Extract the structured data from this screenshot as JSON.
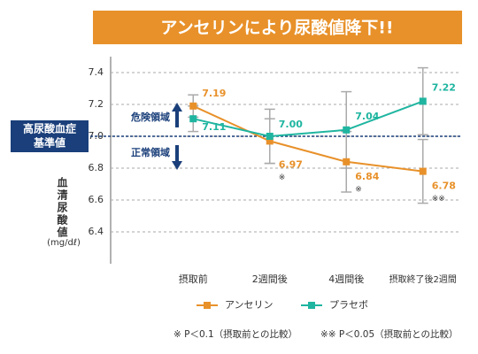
{
  "chart_data": {
    "type": "line",
    "title": "アンセリンにより尿酸値降下!!",
    "y_label": "血清尿酸値",
    "y_unit": "(mg/dℓ)",
    "categories": [
      "摂取前",
      "2週間後",
      "4週間後",
      "摂取終了後2週間"
    ],
    "series": [
      {
        "name": "アンセリン",
        "color": "#e8912a",
        "values": [
          7.19,
          6.97,
          6.84,
          6.78
        ],
        "value_labels": [
          "7.19",
          "6.97",
          "6.84",
          "6.78"
        ],
        "errors": [
          0.07,
          0.14,
          0.19,
          0.2
        ],
        "significance": [
          null,
          "※",
          "※",
          "※※"
        ]
      },
      {
        "name": "プラセボ",
        "color": "#1fb5a0",
        "values": [
          7.11,
          7.0,
          7.04,
          7.22
        ],
        "value_labels": [
          "7.11",
          "7.00",
          "7.04",
          "7.22"
        ],
        "errors": [
          0.08,
          0.17,
          0.24,
          0.21
        ]
      }
    ],
    "ylim": [
      6.2,
      7.5
    ],
    "yticks": [
      6.4,
      6.6,
      6.8,
      {
        "value": 7,
        "label": "7.0"
      },
      7.2,
      7.4
    ],
    "grid": true,
    "reference_line": {
      "value": 7,
      "label": [
        "高尿酸血症",
        "基準値"
      ],
      "color": "#1a3f7a"
    },
    "annotations": {
      "danger": "危険領域",
      "normal": "正常領域"
    },
    "footnotes": [
      "※ P＜0.1（摂取前との比較）",
      "※※ P＜0.05（摂取前との比較）"
    ],
    "legend": "bottom"
  }
}
